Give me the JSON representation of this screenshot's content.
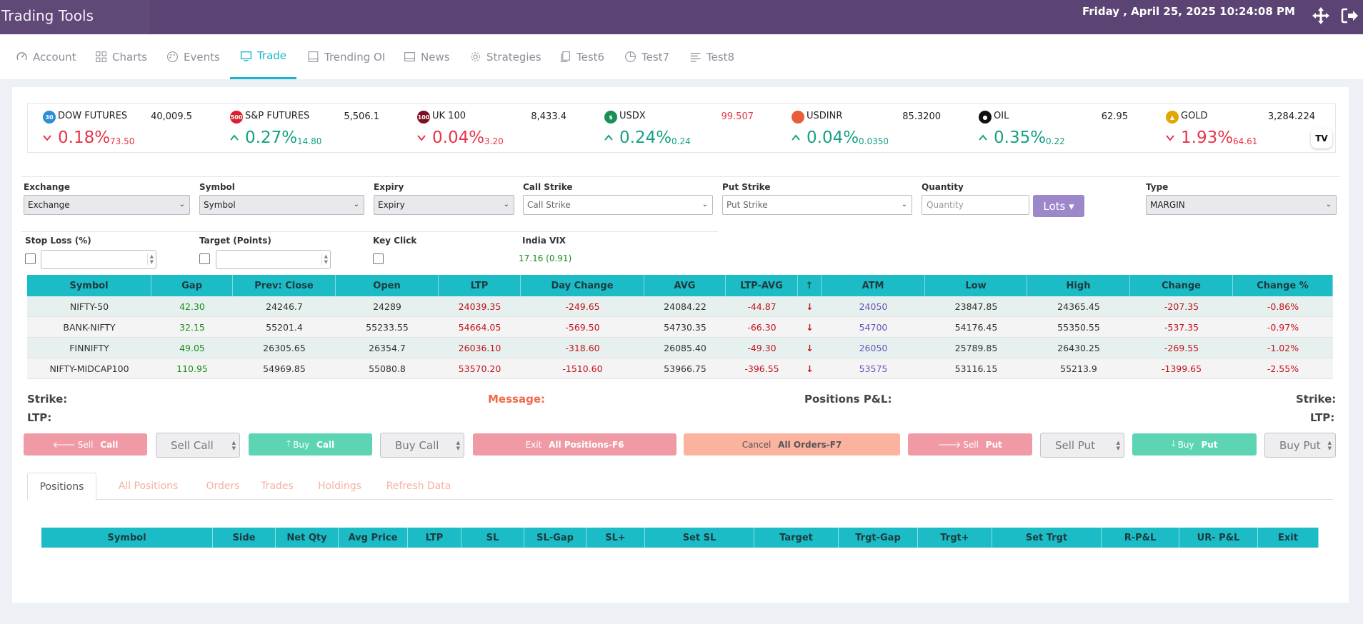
{
  "app": {
    "title": "Trading Tools",
    "datetime": "Friday , April 25, 2025 10:24:08 PM"
  },
  "nav": {
    "tabs": [
      {
        "label": "Account",
        "icon": "gauge-icon"
      },
      {
        "label": "Charts",
        "icon": "grid-icon"
      },
      {
        "label": "Events",
        "icon": "palette-icon"
      },
      {
        "label": "Trade",
        "icon": "monitor-icon",
        "active": true
      },
      {
        "label": "Trending OI",
        "icon": "book-icon"
      },
      {
        "label": "News",
        "icon": "newspaper-icon"
      },
      {
        "label": "Strategies",
        "icon": "gear-icon"
      },
      {
        "label": "Test6",
        "icon": "copy-icon"
      },
      {
        "label": "Test7",
        "icon": "pie-icon"
      },
      {
        "label": "Test8",
        "icon": "lines-icon"
      }
    ]
  },
  "ticker": [
    {
      "badge": "30",
      "badge_color": "#2a8fd6",
      "name": "DOW FUTURES",
      "price": "40,009.5",
      "dir": "down",
      "pct": "0.18%",
      "chg": "73.50"
    },
    {
      "badge": "500",
      "badge_color": "#d9202f",
      "name": "S&P FUTURES",
      "price": "5,506.1",
      "dir": "up",
      "pct": "0.27%",
      "chg": "14.80"
    },
    {
      "badge": "100",
      "badge_color": "#7a1020",
      "name": "UK 100",
      "price": "8,433.4",
      "dir": "down",
      "pct": "0.04%",
      "chg": "3.20"
    },
    {
      "badge": "$",
      "badge_color": "#1a8f55",
      "name": "USDX",
      "price": "99.507",
      "price_color": "#e8334a",
      "dir": "up",
      "pct": "0.24%",
      "chg": "0.24"
    },
    {
      "badge": "",
      "badge_color": "#e85d3a",
      "name": "USDINR",
      "price": "85.3200",
      "dir": "up",
      "pct": "0.04%",
      "chg": "0.0350"
    },
    {
      "badge": "●",
      "badge_color": "#111111",
      "name": "OIL",
      "price": "62.95",
      "dir": "up",
      "pct": "0.35%",
      "chg": "0.22"
    },
    {
      "badge": "▲",
      "badge_color": "#e0a700",
      "name": "GOLD",
      "price": "3,284.224",
      "dir": "down",
      "pct": "1.93%",
      "chg": "64.61"
    }
  ],
  "tv_logo": "TV",
  "form": {
    "exchange": {
      "label": "Exchange",
      "value": "Exchange"
    },
    "symbol": {
      "label": "Symbol",
      "value": "Symbol"
    },
    "expiry": {
      "label": "Expiry",
      "value": "Expiry"
    },
    "call_strike": {
      "label": "Call Strike",
      "value": "Call Strike"
    },
    "put_strike": {
      "label": "Put Strike",
      "value": "Put Strike"
    },
    "quantity": {
      "label": "Quantity",
      "placeholder": "Quantity"
    },
    "lots_button": "Lots ▾",
    "type": {
      "label": "Type",
      "value": "MARGIN"
    },
    "stop_loss_label": "Stop Loss (%)",
    "target_label": "Target (Points)",
    "key_click_label": "Key Click",
    "vix_label": "India VIX",
    "vix_value": "17.16 (0.91)"
  },
  "market_table": {
    "headers": [
      "Symbol",
      "Gap",
      "Prev: Close",
      "Open",
      "LTP",
      "Day Change",
      "AVG",
      "LTP-AVG",
      "↑",
      "ATM",
      "Low",
      "High",
      "Change",
      "Change %"
    ],
    "rows": [
      [
        "NIFTY-50",
        "42.30",
        "24246.7",
        "24289",
        "24039.35",
        "-249.65",
        "24084.22",
        "-44.87",
        "↓",
        "24050",
        "23847.85",
        "24365.45",
        "-207.35",
        "-0.86%"
      ],
      [
        "BANK-NIFTY",
        "32.15",
        "55201.4",
        "55233.55",
        "54664.05",
        "-569.50",
        "54730.35",
        "-66.30",
        "↓",
        "54700",
        "54176.45",
        "55350.55",
        "-537.35",
        "-0.97%"
      ],
      [
        "FINNIFTY",
        "49.05",
        "26305.65",
        "26354.7",
        "26036.10",
        "-318.60",
        "26085.40",
        "-49.30",
        "↓",
        "26050",
        "25789.85",
        "26430.25",
        "-269.55",
        "-1.02%"
      ],
      [
        "NIFTY-MIDCAP100",
        "110.95",
        "54969.85",
        "55080.8",
        "53570.20",
        "-1510.60",
        "53966.75",
        "-396.55",
        "↓",
        "53575",
        "53116.15",
        "55213.9",
        "-1399.65",
        "-2.55%"
      ]
    ]
  },
  "labels": {
    "strike_left": "Strike:",
    "ltp_left": "LTP:",
    "message": "Message:",
    "positions_pnl": "Positions P&L:",
    "strike_right": "Strike:",
    "ltp_right": "LTP:"
  },
  "actions": {
    "sell_call": {
      "pre": "Sell",
      "bold": "Call"
    },
    "sell_call_qty": "Sell Call",
    "buy_call": {
      "pre": "Buy",
      "bold": "Call"
    },
    "buy_call_qty": "Buy Call",
    "exit_all": {
      "pre": "Exit",
      "bold": "All Positions-F6"
    },
    "cancel_all": {
      "pre": "Cancel",
      "bold": "All Orders-F7"
    },
    "sell_put": {
      "pre": "Sell",
      "bold": "Put"
    },
    "sell_put_qty": "Sell Put",
    "buy_put": {
      "pre": "Buy",
      "bold": "Put"
    },
    "buy_put_qty": "Buy Put"
  },
  "bottom_tabs": [
    "Positions",
    "All Positions",
    "Orders",
    "Trades",
    "Holdings",
    "Refresh Data"
  ],
  "positions_table": {
    "headers": [
      "Symbol",
      "Side",
      "Net Qty",
      "Avg Price",
      "LTP",
      "SL",
      "SL-Gap",
      "SL+",
      "Set SL",
      "Target",
      "Trgt-Gap",
      "Trgt+",
      "Set Trgt",
      "R-P&L",
      "UR- P&L",
      "Exit"
    ]
  }
}
